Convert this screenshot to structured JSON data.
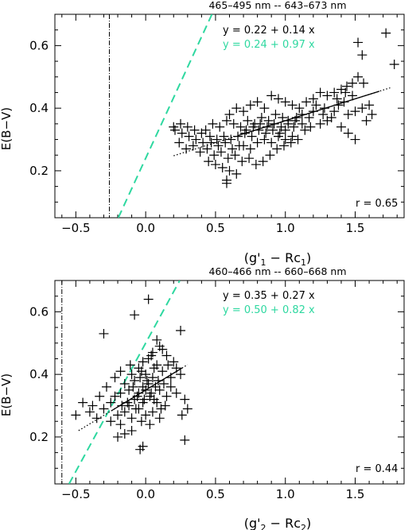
{
  "chart_data": [
    {
      "type": "scatter",
      "title": "465–495 nm -- 643–673 nm",
      "xlabel_main": "(g'",
      "xlabel_sub1": "1",
      "xlabel_mid": " − Rc",
      "xlabel_sub2": "1",
      "xlabel_end": ")",
      "ylabel": "E(B−V)",
      "xlim": [
        -0.65,
        1.85
      ],
      "ylim": [
        0.05,
        0.7
      ],
      "xticks": [
        -0.5,
        0.0,
        0.5,
        1.0,
        1.5
      ],
      "xtick_labels": [
        "−0.5",
        "0.0",
        "0.5",
        "1.0",
        "1.5"
      ],
      "yticks": [
        0.2,
        0.4,
        0.6
      ],
      "ytick_labels": [
        "0.2",
        "0.4",
        "0.6"
      ],
      "vline_x": -0.26,
      "fit_black": {
        "intercept": 0.22,
        "slope": 0.14,
        "x_range": [
          0.2,
          1.75
        ]
      },
      "fit_cyan": {
        "intercept": 0.24,
        "slope": 0.97
      },
      "eq_black": "y =  0.22 +  0.14 x",
      "eq_cyan": "y =  0.24 +  0.97 x",
      "r_text": "r =   0.65",
      "colors": {
        "cyan": "#2ed8a0",
        "black": "#000000"
      },
      "points": [
        [
          1.72,
          0.64
        ],
        [
          1.52,
          0.61
        ],
        [
          1.55,
          0.57
        ],
        [
          1.78,
          0.54
        ],
        [
          1.52,
          0.5
        ],
        [
          1.48,
          0.48
        ],
        [
          1.44,
          0.47
        ],
        [
          1.56,
          0.48
        ],
        [
          1.4,
          0.46
        ],
        [
          1.35,
          0.45
        ],
        [
          1.3,
          0.44
        ],
        [
          1.25,
          0.45
        ],
        [
          1.2,
          0.43
        ],
        [
          1.48,
          0.44
        ],
        [
          1.42,
          0.42
        ],
        [
          1.38,
          0.41
        ],
        [
          1.55,
          0.4
        ],
        [
          1.6,
          0.41
        ],
        [
          1.5,
          0.39
        ],
        [
          1.45,
          0.38
        ],
        [
          1.35,
          0.39
        ],
        [
          1.28,
          0.4
        ],
        [
          1.22,
          0.41
        ],
        [
          1.15,
          0.42
        ],
        [
          1.1,
          0.4
        ],
        [
          1.05,
          0.41
        ],
        [
          1.0,
          0.42
        ],
        [
          0.95,
          0.43
        ],
        [
          0.9,
          0.44
        ],
        [
          0.85,
          0.4
        ],
        [
          0.8,
          0.42
        ],
        [
          0.75,
          0.41
        ],
        [
          0.7,
          0.39
        ],
        [
          0.65,
          0.4
        ],
        [
          0.6,
          0.38
        ],
        [
          1.12,
          0.38
        ],
        [
          1.08,
          0.37
        ],
        [
          1.02,
          0.36
        ],
        [
          0.98,
          0.37
        ],
        [
          0.93,
          0.38
        ],
        [
          0.88,
          0.36
        ],
        [
          0.83,
          0.37
        ],
        [
          0.78,
          0.35
        ],
        [
          0.73,
          0.36
        ],
        [
          0.68,
          0.34
        ],
        [
          0.63,
          0.35
        ],
        [
          0.58,
          0.36
        ],
        [
          0.53,
          0.34
        ],
        [
          0.48,
          0.35
        ],
        [
          0.43,
          0.33
        ],
        [
          1.3,
          0.36
        ],
        [
          1.25,
          0.35
        ],
        [
          1.18,
          0.34
        ],
        [
          1.14,
          0.33
        ],
        [
          1.06,
          0.34
        ],
        [
          1.0,
          0.33
        ],
        [
          0.96,
          0.32
        ],
        [
          0.91,
          0.33
        ],
        [
          0.86,
          0.32
        ],
        [
          0.81,
          0.33
        ],
        [
          0.76,
          0.31
        ],
        [
          0.71,
          0.32
        ],
        [
          0.66,
          0.31
        ],
        [
          0.61,
          0.3
        ],
        [
          0.56,
          0.31
        ],
        [
          0.51,
          0.3
        ],
        [
          0.46,
          0.31
        ],
        [
          0.41,
          0.29
        ],
        [
          0.36,
          0.3
        ],
        [
          0.31,
          0.31
        ],
        [
          0.26,
          0.32
        ],
        [
          0.21,
          0.33
        ],
        [
          0.24,
          0.29
        ],
        [
          0.29,
          0.27
        ],
        [
          0.34,
          0.28
        ],
        [
          0.39,
          0.26
        ],
        [
          0.44,
          0.27
        ],
        [
          0.49,
          0.25
        ],
        [
          0.54,
          0.26
        ],
        [
          0.59,
          0.24
        ],
        [
          0.64,
          0.25
        ],
        [
          0.69,
          0.23
        ],
        [
          0.74,
          0.24
        ],
        [
          0.79,
          0.22
        ],
        [
          0.84,
          0.23
        ],
        [
          0.89,
          0.25
        ],
        [
          0.94,
          0.27
        ],
        [
          0.99,
          0.28
        ],
        [
          1.04,
          0.29
        ],
        [
          1.09,
          0.3
        ],
        [
          1.4,
          0.34
        ],
        [
          1.45,
          0.32
        ],
        [
          1.5,
          0.3
        ],
        [
          1.58,
          0.36
        ],
        [
          1.62,
          0.38
        ],
        [
          0.55,
          0.21
        ],
        [
          0.6,
          0.2
        ],
        [
          0.65,
          0.19
        ],
        [
          0.5,
          0.22
        ],
        [
          0.45,
          0.23
        ],
        [
          0.58,
          0.17
        ],
        [
          0.58,
          0.16
        ],
        [
          0.7,
          0.28
        ],
        [
          0.75,
          0.27
        ],
        [
          0.8,
          0.29
        ],
        [
          0.85,
          0.3
        ],
        [
          0.9,
          0.29
        ],
        [
          0.95,
          0.31
        ],
        [
          1.0,
          0.3
        ],
        [
          1.05,
          0.31
        ],
        [
          0.72,
          0.33
        ],
        [
          0.77,
          0.34
        ],
        [
          0.82,
          0.35
        ],
        [
          0.87,
          0.34
        ],
        [
          0.92,
          0.35
        ],
        [
          0.97,
          0.34
        ],
        [
          1.02,
          0.35
        ],
        [
          1.07,
          0.36
        ],
        [
          1.12,
          0.35
        ],
        [
          1.17,
          0.37
        ],
        [
          0.4,
          0.32
        ],
        [
          0.35,
          0.33
        ],
        [
          0.3,
          0.34
        ],
        [
          0.25,
          0.35
        ],
        [
          0.2,
          0.34
        ],
        [
          1.2,
          0.39
        ],
        [
          1.27,
          0.38
        ],
        [
          1.33,
          0.37
        ],
        [
          1.37,
          0.43
        ],
        [
          1.43,
          0.45
        ],
        [
          0.62,
          0.27
        ],
        [
          0.67,
          0.28
        ],
        [
          0.57,
          0.29
        ],
        [
          0.52,
          0.28
        ],
        [
          0.47,
          0.29
        ]
      ]
    },
    {
      "type": "scatter",
      "title": "460–466 nm -- 660–668 nm",
      "xlabel_main": "(g'",
      "xlabel_sub1": "2",
      "xlabel_mid": " − Rc",
      "xlabel_sub2": "2",
      "xlabel_end": ")",
      "ylabel": "E(B−V)",
      "xlim": [
        -0.65,
        1.85
      ],
      "ylim": [
        0.05,
        0.7
      ],
      "xticks": [
        -0.5,
        0.0,
        0.5,
        1.0,
        1.5
      ],
      "xtick_labels": [
        "−0.5",
        "0.0",
        "0.5",
        "1.0",
        "1.5"
      ],
      "yticks": [
        0.2,
        0.4,
        0.6
      ],
      "ytick_labels": [
        "0.2",
        "0.4",
        "0.6"
      ],
      "vline_x": -0.6,
      "fit_black": {
        "intercept": 0.35,
        "slope": 0.27,
        "x_range": [
          -0.48,
          0.3
        ]
      },
      "fit_cyan": {
        "intercept": 0.5,
        "slope": 0.82
      },
      "eq_black": "y =  0.35 +  0.27 x",
      "eq_cyan": "y =  0.50 +  0.82 x",
      "r_text": "r =   0.44",
      "colors": {
        "cyan": "#2ed8a0",
        "black": "#000000"
      },
      "points": [
        [
          0.02,
          0.64
        ],
        [
          -0.08,
          0.59
        ],
        [
          0.25,
          0.54
        ],
        [
          -0.3,
          0.53
        ],
        [
          0.08,
          0.51
        ],
        [
          0.1,
          0.49
        ],
        [
          0.12,
          0.48
        ],
        [
          0.05,
          0.47
        ],
        [
          0.15,
          0.46
        ],
        [
          0.02,
          0.45
        ],
        [
          -0.02,
          0.44
        ],
        [
          0.08,
          0.43
        ],
        [
          -0.05,
          0.42
        ],
        [
          0.12,
          0.41
        ],
        [
          0.0,
          0.4
        ],
        [
          -0.1,
          0.4
        ],
        [
          0.05,
          0.39
        ],
        [
          -0.08,
          0.38
        ],
        [
          0.18,
          0.39
        ],
        [
          -0.15,
          0.37
        ],
        [
          0.02,
          0.37
        ],
        [
          -0.02,
          0.36
        ],
        [
          -0.12,
          0.35
        ],
        [
          0.07,
          0.36
        ],
        [
          -0.18,
          0.34
        ],
        [
          0.1,
          0.35
        ],
        [
          -0.05,
          0.34
        ],
        [
          -0.22,
          0.33
        ],
        [
          0.03,
          0.33
        ],
        [
          -0.08,
          0.32
        ],
        [
          0.15,
          0.33
        ],
        [
          -0.25,
          0.31
        ],
        [
          -0.02,
          0.31
        ],
        [
          -0.12,
          0.3
        ],
        [
          0.08,
          0.31
        ],
        [
          -0.3,
          0.29
        ],
        [
          -0.05,
          0.29
        ],
        [
          -0.15,
          0.28
        ],
        [
          0.05,
          0.28
        ],
        [
          -0.2,
          0.27
        ],
        [
          0.0,
          0.27
        ],
        [
          -0.35,
          0.26
        ],
        [
          -0.1,
          0.26
        ],
        [
          0.1,
          0.26
        ],
        [
          -0.25,
          0.25
        ],
        [
          -0.03,
          0.25
        ],
        [
          -0.18,
          0.24
        ],
        [
          0.03,
          0.24
        ],
        [
          -0.4,
          0.28
        ],
        [
          -0.45,
          0.31
        ],
        [
          -0.28,
          0.36
        ],
        [
          -0.33,
          0.33
        ],
        [
          -0.38,
          0.3
        ],
        [
          -0.5,
          0.27
        ],
        [
          -0.22,
          0.39
        ],
        [
          -0.18,
          0.41
        ],
        [
          0.2,
          0.44
        ],
        [
          0.22,
          0.42
        ],
        [
          0.25,
          0.4
        ],
        [
          0.18,
          0.36
        ],
        [
          0.22,
          0.34
        ],
        [
          0.28,
          0.32
        ],
        [
          0.3,
          0.29
        ],
        [
          0.26,
          0.27
        ],
        [
          0.28,
          0.19
        ],
        [
          -0.02,
          0.17
        ],
        [
          -0.04,
          0.16
        ],
        [
          -0.15,
          0.21
        ],
        [
          -0.2,
          0.2
        ],
        [
          -0.1,
          0.22
        ],
        [
          0.0,
          0.35
        ],
        [
          0.04,
          0.34
        ],
        [
          -0.06,
          0.33
        ],
        [
          -0.01,
          0.32
        ],
        [
          0.06,
          0.32
        ],
        [
          -0.09,
          0.36
        ],
        [
          0.01,
          0.38
        ],
        [
          -0.04,
          0.39
        ],
        [
          0.09,
          0.38
        ],
        [
          0.13,
          0.37
        ],
        [
          -0.13,
          0.31
        ],
        [
          -0.17,
          0.3
        ],
        [
          -0.07,
          0.29
        ],
        [
          0.11,
          0.29
        ],
        [
          0.14,
          0.3
        ],
        [
          -0.11,
          0.43
        ],
        [
          0.06,
          0.42
        ],
        [
          0.16,
          0.43
        ],
        [
          -0.03,
          0.41
        ],
        [
          0.04,
          0.46
        ]
      ]
    }
  ]
}
